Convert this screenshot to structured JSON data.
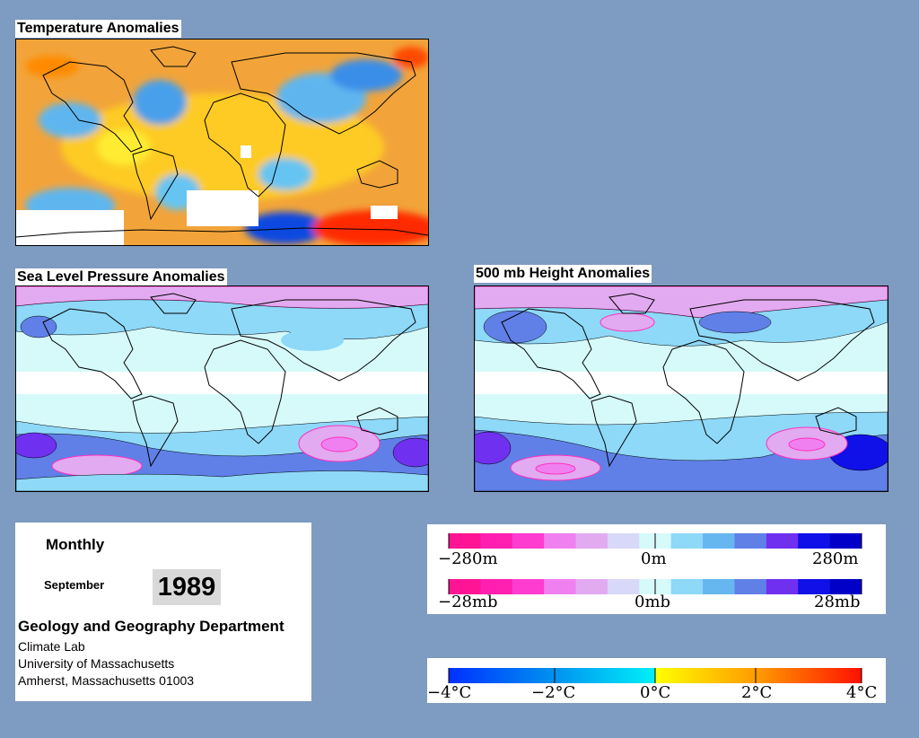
{
  "panels": {
    "temperature": {
      "title": "Temperature Anomalies"
    },
    "slp": {
      "title": "Sea Level Pressure Anomalies"
    },
    "height": {
      "title": "500 mb Height Anomalies"
    }
  },
  "info": {
    "period": "Monthly",
    "month": "September",
    "year": "1989",
    "department": "Geology and Geography Department",
    "lab": "Climate Lab",
    "university": "University of Massachusetts",
    "address": "Amherst, Massachusetts 01003"
  },
  "legends": {
    "height": {
      "min": "−280m",
      "mid": "0m",
      "max": "280m"
    },
    "pressure": {
      "min": "−28mb",
      "mid": "0mb",
      "max": "28mb"
    },
    "temperature": {
      "l1": "−4°C",
      "l2": "−2°C",
      "l3": "0°C",
      "l4": "2°C",
      "l5": "4°C"
    }
  },
  "colors": {
    "background": "#7e9bc1",
    "anomaly_scale": [
      "#ff1493",
      "#ff1fb0",
      "#ff3cd0",
      "#f080f0",
      "#e2aaf0",
      "#d8d8f8",
      "#d6fafa",
      "#8ed8f8",
      "#66b6f0",
      "#6080e8",
      "#7030f0",
      "#1010e8",
      "#0000c8"
    ],
    "temperature_scale": [
      "#0040ff",
      "#0080f0",
      "#00b0f0",
      "#00e0f8",
      "#ffff00",
      "#ffcc00",
      "#ff9900",
      "#ff6600",
      "#ff2000"
    ]
  }
}
